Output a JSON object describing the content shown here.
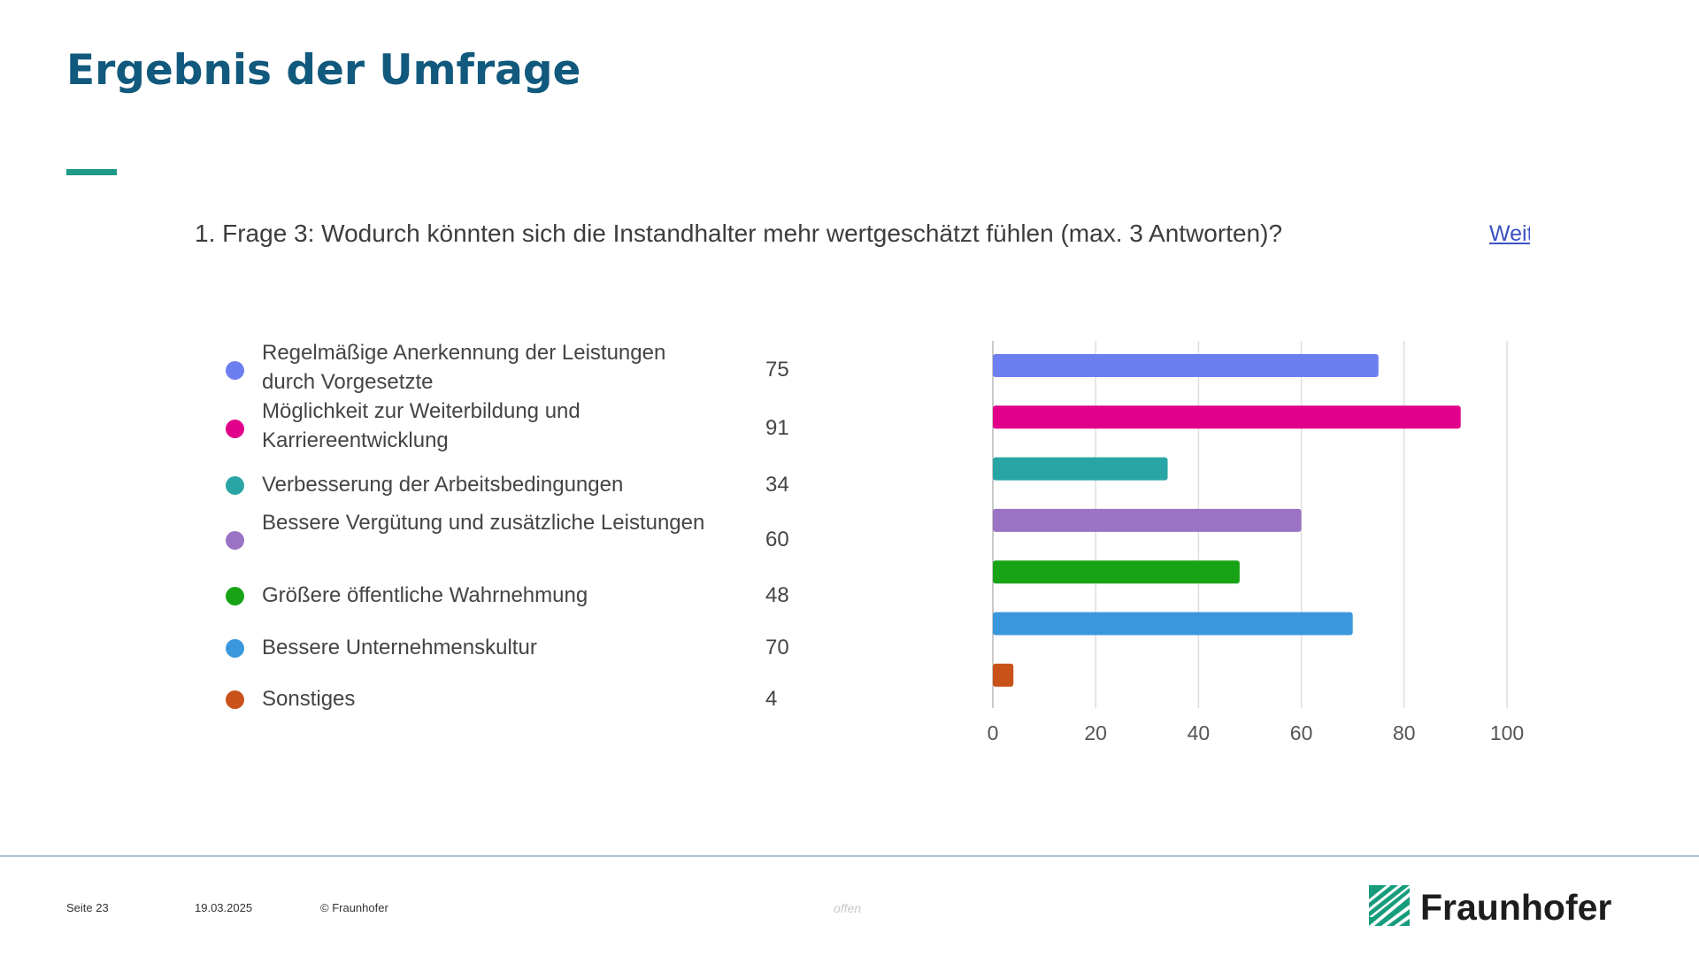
{
  "header": {
    "title": "Ergebnis der Umfrage",
    "accent_color": "#1f9a86"
  },
  "question": {
    "text": "1. Frage 3: Wodurch könnten sich die Instandhalter mehr wertgeschätzt fühlen (max. 3 Antworten)?",
    "more_link": "Weitere Details"
  },
  "chart_data": {
    "type": "bar",
    "orientation": "horizontal",
    "categories": [
      "Regelmäßige Anerkennung der Leistungen durch Vorgesetzte",
      "Möglichkeit zur Weiterbildung und Karriereentwicklung",
      "Verbesserung der Arbeitsbedingungen",
      "Bessere Vergütung und zusätzliche Leistungen",
      "Größere öffentliche Wahrnehmung",
      "Bessere Unternehmenskultur",
      "Sonstiges"
    ],
    "values": [
      75,
      91,
      34,
      60,
      48,
      70,
      4
    ],
    "colors": [
      "#6c7ff0",
      "#e2008a",
      "#2aa5a5",
      "#9b73c4",
      "#18a317",
      "#3b97dc",
      "#c8521a"
    ],
    "xlim": [
      0,
      100
    ],
    "xticks": [
      0,
      20,
      40,
      60,
      80,
      100
    ],
    "grid": true,
    "legend": "left"
  },
  "footer": {
    "page": "Seite 23",
    "date": "19.03.2025",
    "copyright": "© Fraunhofer",
    "classification": "offen",
    "logo_text": "Fraunhofer",
    "logo_color": "#179c7d"
  }
}
